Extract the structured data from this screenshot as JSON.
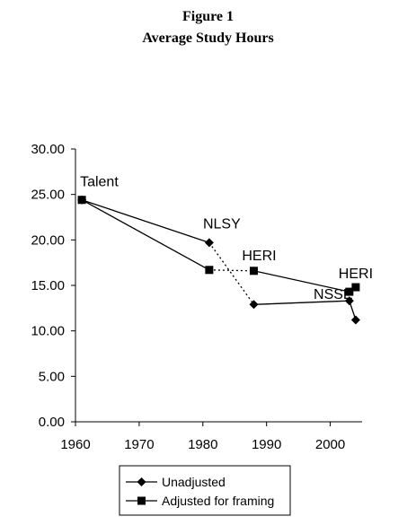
{
  "figure": {
    "label": "Figure 1",
    "title": "Average Study Hours"
  },
  "chart_data": {
    "type": "line",
    "title": "Average Study Hours",
    "xlabel": "",
    "ylabel": "",
    "xlim": [
      1960,
      2005
    ],
    "ylim": [
      0,
      30
    ],
    "x_ticks": [
      "1960",
      "1970",
      "1980",
      "1990",
      "2000"
    ],
    "y_ticks": [
      "0.00",
      "5.00",
      "10.00",
      "15.00",
      "20.00",
      "25.00",
      "30.00"
    ],
    "grid": false,
    "legend_position": "bottom",
    "series": [
      {
        "name": "Unadjusted",
        "marker": "diamond",
        "color": "#000000",
        "points": [
          {
            "x": 1961,
            "y": 24.4
          },
          {
            "x": 1981,
            "y": 19.7
          },
          {
            "x": 1988,
            "y": 12.9
          },
          {
            "x": 2003,
            "y": 13.3
          },
          {
            "x": 2004,
            "y": 11.2
          }
        ]
      },
      {
        "name": "Adjusted for framing",
        "marker": "square",
        "color": "#000000",
        "points": [
          {
            "x": 1961,
            "y": 24.4
          },
          {
            "x": 1981,
            "y": 16.7
          },
          {
            "x": 1988,
            "y": 16.6
          },
          {
            "x": 2003,
            "y": 14.3
          },
          {
            "x": 2004,
            "y": 14.8
          }
        ]
      }
    ],
    "segments": [
      {
        "series": 0,
        "from": 0,
        "to": 1,
        "style": "solid"
      },
      {
        "series": 0,
        "from": 1,
        "to": 2,
        "style": "dotted"
      },
      {
        "series": 0,
        "from": 2,
        "to": 4,
        "style": "solid"
      },
      {
        "series": 1,
        "from": 0,
        "to": 1,
        "style": "solid"
      },
      {
        "series": 1,
        "from": 1,
        "to": 2,
        "style": "dotted"
      },
      {
        "series": 1,
        "from": 2,
        "to": 4,
        "style": "solid"
      }
    ],
    "annotations": [
      {
        "text": "Talent",
        "x": 1961,
        "y": 24.4
      },
      {
        "text": "NLSY",
        "x": 1981,
        "y": 19.7
      },
      {
        "text": "HERI",
        "x": 1988,
        "y": 16.6
      },
      {
        "text": "NSSE",
        "x": 2003,
        "y": 13.3
      },
      {
        "text": "HERI",
        "x": 2004,
        "y": 14.8
      }
    ]
  }
}
